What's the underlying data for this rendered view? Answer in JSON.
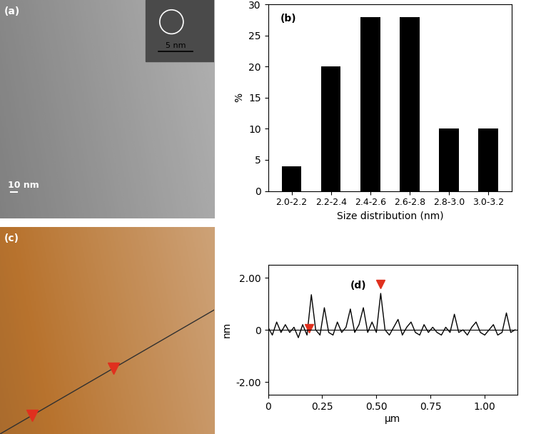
{
  "chart_data": [
    {
      "type": "image",
      "title": "(a)",
      "annotations": [
        "10 nm",
        "5 nm"
      ],
      "color": "#8a8a8a"
    },
    {
      "type": "bar",
      "title": "(b)",
      "categories": [
        "2.0-2.2",
        "2.2-2.4",
        "2.4-2.6",
        "2.6-2.8",
        "2.8-3.0",
        "3.0-3.2"
      ],
      "values": [
        4,
        20,
        28,
        28,
        10,
        10
      ],
      "color": "#000000",
      "x_label": "Size distribution (nm)",
      "y_label": "%",
      "ylim": [
        0,
        30
      ],
      "yticks": [
        0,
        5,
        10,
        15,
        20,
        25,
        30
      ]
    },
    {
      "type": "image",
      "title": "(c)",
      "annotations": [],
      "color": "#b8732e"
    },
    {
      "type": "line",
      "title": "(d)",
      "x_label": "µm",
      "y_label": "nm",
      "x": [
        0,
        0.02,
        0.04,
        0.06,
        0.08,
        0.1,
        0.12,
        0.14,
        0.16,
        0.18,
        0.2,
        0.22,
        0.24,
        0.26,
        0.28,
        0.3,
        0.32,
        0.34,
        0.36,
        0.38,
        0.4,
        0.42,
        0.44,
        0.46,
        0.48,
        0.5,
        0.52,
        0.54,
        0.56,
        0.58,
        0.6,
        0.62,
        0.64,
        0.66,
        0.68,
        0.7,
        0.72,
        0.74,
        0.76,
        0.78,
        0.8,
        0.82,
        0.84,
        0.86,
        0.88,
        0.9,
        0.92,
        0.94,
        0.96,
        0.98,
        1.0,
        1.02,
        1.04,
        1.06,
        1.08,
        1.1,
        1.12,
        1.14
      ],
      "series": [
        {
          "type": "line",
          "color": "#000000",
          "values": [
            0.1,
            -0.2,
            0.3,
            -0.1,
            0.2,
            -0.1,
            0.1,
            -0.3,
            0.2,
            -0.2,
            1.35,
            0.0,
            -0.2,
            0.85,
            -0.1,
            -0.2,
            0.3,
            -0.1,
            0.1,
            0.8,
            -0.1,
            0.2,
            0.85,
            -0.1,
            0.3,
            -0.1,
            1.4,
            0.0,
            -0.2,
            0.1,
            0.4,
            -0.2,
            0.1,
            0.3,
            -0.1,
            -0.2,
            0.2,
            -0.1,
            0.1,
            -0.1,
            -0.2,
            0.1,
            -0.1,
            0.6,
            -0.1,
            0.0,
            -0.2,
            0.1,
            0.3,
            -0.1,
            -0.2,
            0.0,
            0.2,
            -0.2,
            -0.1,
            0.65,
            -0.1,
            0.0
          ]
        },
        {
          "type": "scatter",
          "color": "#e0301e",
          "marker": "v",
          "x": [
            0.19,
            0.52
          ],
          "values": [
            0.05,
            1.75
          ]
        }
      ],
      "hline": 0,
      "xlim": [
        0,
        1.15
      ],
      "xticks": [
        0,
        0.25,
        {
          "value": 0.5,
          "label": "0.50"
        },
        0.75,
        {
          "value": 1,
          "label": "1.00"
        }
      ],
      "ylim": [
        -2.5,
        2.5
      ],
      "yticks": [
        {
          "value": -2,
          "label": "-2.00"
        },
        0,
        {
          "value": 2,
          "label": "2.00"
        }
      ]
    }
  ]
}
